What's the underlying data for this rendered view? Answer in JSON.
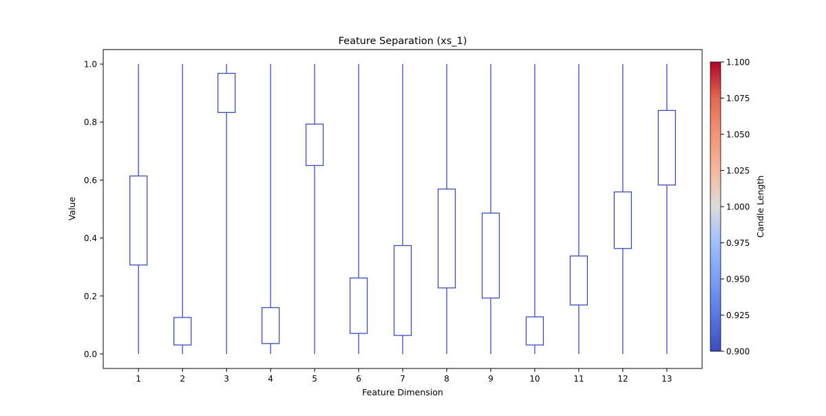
{
  "chart_data": {
    "type": "boxplot",
    "title": "Feature Separation (xs_1)",
    "xlabel": "Feature Dimension",
    "ylabel": "Value",
    "categories": [
      "1",
      "2",
      "3",
      "4",
      "5",
      "6",
      "7",
      "8",
      "9",
      "10",
      "11",
      "12",
      "13"
    ],
    "ylim": [
      -0.05,
      1.05
    ],
    "yticks": [
      0.0,
      0.2,
      0.4,
      0.6,
      0.8,
      1.0
    ],
    "ytick_labels": [
      "0.0",
      "0.2",
      "0.4",
      "0.6",
      "0.8",
      "1.0"
    ],
    "grid": false,
    "box_color": "#3b4cc0",
    "series": [
      {
        "whisker_low": 0,
        "q1": 0.307,
        "q3": 0.614,
        "whisker_high": 1
      },
      {
        "whisker_low": 0,
        "q1": 0.031,
        "q3": 0.126,
        "whisker_high": 1
      },
      {
        "whisker_low": 0,
        "q1": 0.833,
        "q3": 0.968,
        "whisker_high": 1
      },
      {
        "whisker_low": 0,
        "q1": 0.036,
        "q3": 0.16,
        "whisker_high": 1
      },
      {
        "whisker_low": 0,
        "q1": 0.65,
        "q3": 0.793,
        "whisker_high": 1
      },
      {
        "whisker_low": 0,
        "q1": 0.071,
        "q3": 0.262,
        "whisker_high": 1
      },
      {
        "whisker_low": 0,
        "q1": 0.064,
        "q3": 0.374,
        "whisker_high": 1
      },
      {
        "whisker_low": 0,
        "q1": 0.228,
        "q3": 0.569,
        "whisker_high": 1
      },
      {
        "whisker_low": 0,
        "q1": 0.193,
        "q3": 0.486,
        "whisker_high": 1
      },
      {
        "whisker_low": 0,
        "q1": 0.031,
        "q3": 0.128,
        "whisker_high": 1
      },
      {
        "whisker_low": 0,
        "q1": 0.169,
        "q3": 0.338,
        "whisker_high": 1
      },
      {
        "whisker_low": 0,
        "q1": 0.364,
        "q3": 0.559,
        "whisker_high": 1
      },
      {
        "whisker_low": 0,
        "q1": 0.583,
        "q3": 0.84,
        "whisker_high": 1
      }
    ],
    "colorbar": {
      "label": "Candle Length",
      "range": [
        0.9,
        1.1
      ],
      "ticks": [
        "0.900",
        "0.925",
        "0.950",
        "0.975",
        "1.000",
        "1.025",
        "1.050",
        "1.075",
        "1.100"
      ],
      "colormap": "coolwarm"
    }
  }
}
